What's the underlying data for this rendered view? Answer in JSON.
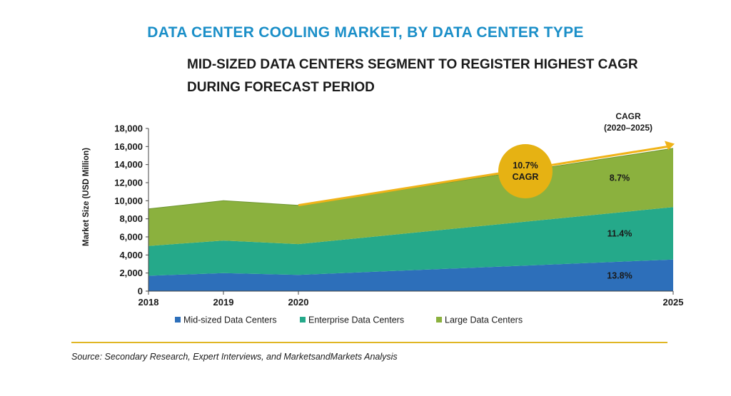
{
  "title": "DATA CENTER COOLING MARKET, BY DATA CENTER TYPE",
  "subtitle": "MID-SIZED DATA CENTERS SEGMENT TO REGISTER HIGHEST CAGR DURING FORECAST PERIOD",
  "source": "Source: Secondary Research, Expert Interviews, and MarketsandMarkets Analysis",
  "colors": {
    "title": "#1b8fc8",
    "mid_sized": "#2d6fba",
    "enterprise": "#25a98a",
    "large": "#8bb13e",
    "bubble": "#e6b213",
    "arrow": "#f0b318",
    "rule": "#e0b624"
  },
  "chart_data": {
    "type": "area",
    "stacked": true,
    "x": [
      "2018",
      "2019",
      "2020",
      "2025"
    ],
    "series": [
      {
        "name": "Mid-sized Data Centers",
        "values": [
          1700,
          2000,
          1800,
          3500
        ],
        "cagr": "13.8%"
      },
      {
        "name": "Enterprise Data Centers",
        "values": [
          3300,
          3600,
          3400,
          5800
        ],
        "cagr": "11.4%"
      },
      {
        "name": "Large Data Centers",
        "values": [
          4100,
          4400,
          4300,
          6500
        ],
        "cagr": "8.7%"
      }
    ],
    "ylabel": "Market Size (USD Million)",
    "ylim": [
      0,
      18000
    ],
    "yticks": [
      "0",
      "2,000",
      "4,000",
      "6,000",
      "8,000",
      "10,000",
      "12,000",
      "14,000",
      "16,000",
      "18,000"
    ],
    "cagr_header": [
      "CAGR",
      "(2020–2025)"
    ],
    "callout": [
      "10.7%",
      "CAGR"
    ],
    "legend_position": "bottom",
    "grid": false
  }
}
